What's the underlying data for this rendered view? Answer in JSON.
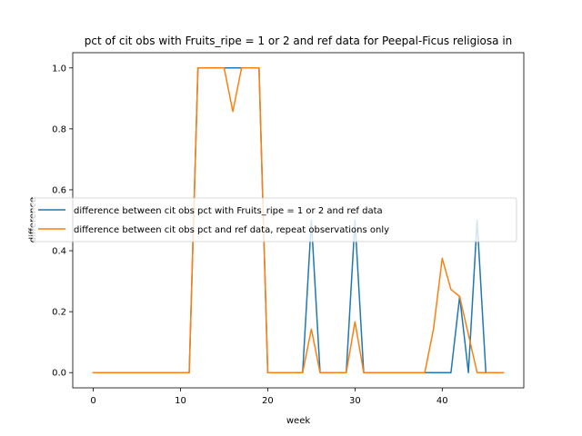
{
  "chart_data": {
    "type": "line",
    "title": "pct of cit obs with Fruits_ripe = 1 or 2 and ref data for Peepal-Ficus religiosa in",
    "xlabel": "week",
    "ylabel": "difference",
    "xlim": [
      -2.35,
      49.35
    ],
    "ylim": [
      -0.05,
      1.05
    ],
    "xticks": [
      0,
      10,
      20,
      30,
      40
    ],
    "yticks": [
      0.0,
      0.2,
      0.4,
      0.6,
      0.8,
      1.0
    ],
    "xtick_labels": [
      "0",
      "10",
      "20",
      "30",
      "40"
    ],
    "ytick_labels": [
      "0.0",
      "0.2",
      "0.4",
      "0.6",
      "0.8",
      "1.0"
    ],
    "grid": false,
    "legend_position": "center-left",
    "x": [
      0,
      1,
      2,
      3,
      4,
      5,
      6,
      7,
      8,
      9,
      10,
      11,
      12,
      13,
      14,
      15,
      16,
      17,
      18,
      19,
      20,
      21,
      22,
      23,
      24,
      25,
      26,
      27,
      28,
      29,
      30,
      31,
      32,
      33,
      34,
      35,
      36,
      37,
      38,
      39,
      40,
      41,
      42,
      43,
      44,
      45,
      46,
      47
    ],
    "series": [
      {
        "name": "difference between cit obs pct with Fruits_ripe = 1 or 2 and ref data",
        "color": "#1f77b4",
        "values": [
          0,
          0,
          0,
          0,
          0,
          0,
          0,
          0,
          0,
          0,
          0,
          0,
          1,
          1,
          1,
          1,
          1,
          1,
          1,
          1,
          0,
          0,
          0,
          0,
          0,
          0.5,
          0,
          0,
          0,
          0,
          0.5,
          0,
          0,
          0,
          0,
          0,
          0,
          0,
          0,
          0,
          0,
          0,
          0.25,
          0,
          0.5,
          0,
          0,
          0
        ]
      },
      {
        "name": "difference between cit obs pct and ref data, repeat observations only",
        "color": "#ff7f0e",
        "values": [
          0,
          0,
          0,
          0,
          0,
          0,
          0,
          0,
          0,
          0,
          0,
          0,
          1,
          1,
          1,
          1,
          0.857,
          1,
          1,
          1,
          0,
          0,
          0,
          0,
          0,
          0.143,
          0,
          0,
          0,
          0,
          0.167,
          0,
          0,
          0,
          0,
          0,
          0,
          0,
          0,
          0.143,
          0.375,
          0.273,
          0.25,
          0.125,
          0,
          0,
          0,
          0
        ]
      }
    ]
  }
}
